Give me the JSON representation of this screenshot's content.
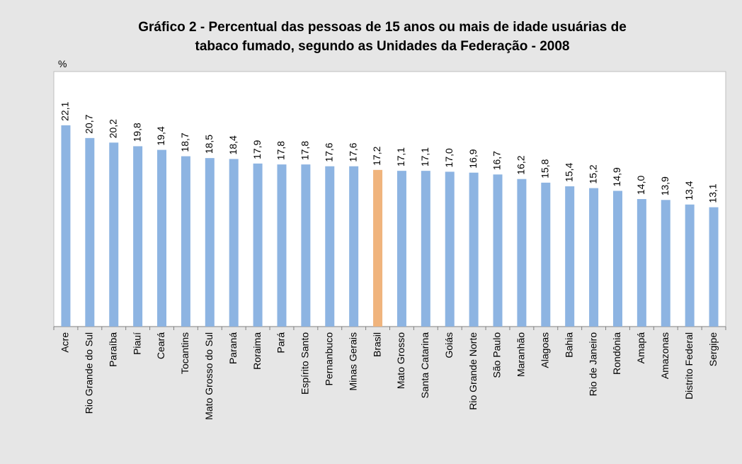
{
  "chart_data": {
    "type": "bar",
    "title": [
      "Gráfico 2 - Percentual das pessoas de 15 anos ou mais de idade usuárias de",
      "tabaco fumado, segundo as Unidades da Federação - 2008"
    ],
    "y_label": "%",
    "categories": [
      "Acre",
      "Rio Grande do Sul",
      "Paraíba",
      "Piauí",
      "Ceará",
      "Tocantins",
      "Mato Grosso do Sul",
      "Paraná",
      "Roraima",
      "Pará",
      "Espírito Santo",
      "Pernanbuco",
      "Minas Gerais",
      "Brasil",
      "Mato Grosso",
      "Santa Catarina",
      "Goiás",
      "Rio Grande Norte",
      "São Paulo",
      "Maranhão",
      "Alagoas",
      "Bahia",
      "Rio de Janeiro",
      "Rondônia",
      "Amapá",
      "Amazonas",
      "Distrito Federal",
      "Sergipe"
    ],
    "values": [
      22.1,
      20.7,
      20.2,
      19.8,
      19.4,
      18.7,
      18.5,
      18.4,
      17.9,
      17.8,
      17.8,
      17.6,
      17.6,
      17.2,
      17.1,
      17.1,
      17.0,
      16.9,
      16.7,
      16.2,
      15.8,
      15.4,
      15.2,
      14.9,
      14.0,
      13.9,
      13.4,
      13.1
    ],
    "value_labels": [
      "22,1",
      "20,7",
      "20,2",
      "19,8",
      "19,4",
      "18,7",
      "18,5",
      "18,4",
      "17,9",
      "17,8",
      "17,8",
      "17,6",
      "17,6",
      "17,2",
      "17,1",
      "17,1",
      "17,0",
      "16,9",
      "16,7",
      "16,2",
      "15,8",
      "15,4",
      "15,2",
      "14,9",
      "14,0",
      "13,9",
      "13,4",
      "13,1"
    ],
    "colors": [
      "#8db4e2",
      "#8db4e2",
      "#8db4e2",
      "#8db4e2",
      "#8db4e2",
      "#8db4e2",
      "#8db4e2",
      "#8db4e2",
      "#8db4e2",
      "#8db4e2",
      "#8db4e2",
      "#8db4e2",
      "#8db4e2",
      "#f0b47d",
      "#8db4e2",
      "#8db4e2",
      "#8db4e2",
      "#8db4e2",
      "#8db4e2",
      "#8db4e2",
      "#8db4e2",
      "#8db4e2",
      "#8db4e2",
      "#8db4e2",
      "#8db4e2",
      "#8db4e2",
      "#8db4e2",
      "#8db4e2"
    ],
    "ylim": [
      0,
      28
    ]
  }
}
